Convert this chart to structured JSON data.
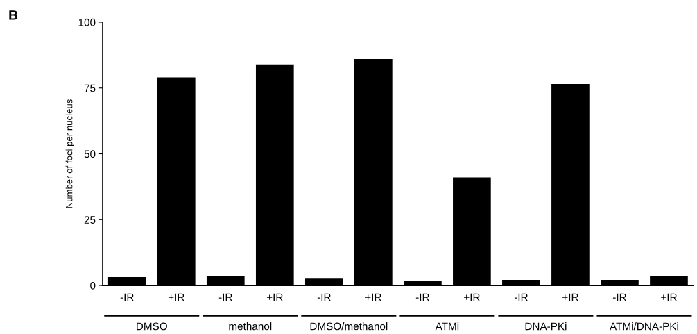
{
  "chart_data": {
    "type": "bar",
    "ylabel": "Number of foci per nucleus",
    "categories": [
      "-IR",
      "+IR",
      "-IR",
      "+IR",
      "-IR",
      "+IR",
      "-IR",
      "+IR",
      "-IR",
      "+IR",
      "-IR",
      "+IR"
    ],
    "values": [
      3.2,
      79,
      3.7,
      84,
      2.6,
      86,
      1.8,
      41,
      2.1,
      76.5,
      2.1,
      3.7
    ],
    "color": "#000000",
    "ylim": [
      0,
      100
    ],
    "yticks": [
      0,
      25,
      50,
      75,
      100
    ],
    "grid": false,
    "annotations": [
      "B",
      "DMSO",
      "methanol",
      "DMSO/methanol",
      "ATMi",
      "DNA-PKi",
      "ATMi/DNA-PKi"
    ]
  }
}
